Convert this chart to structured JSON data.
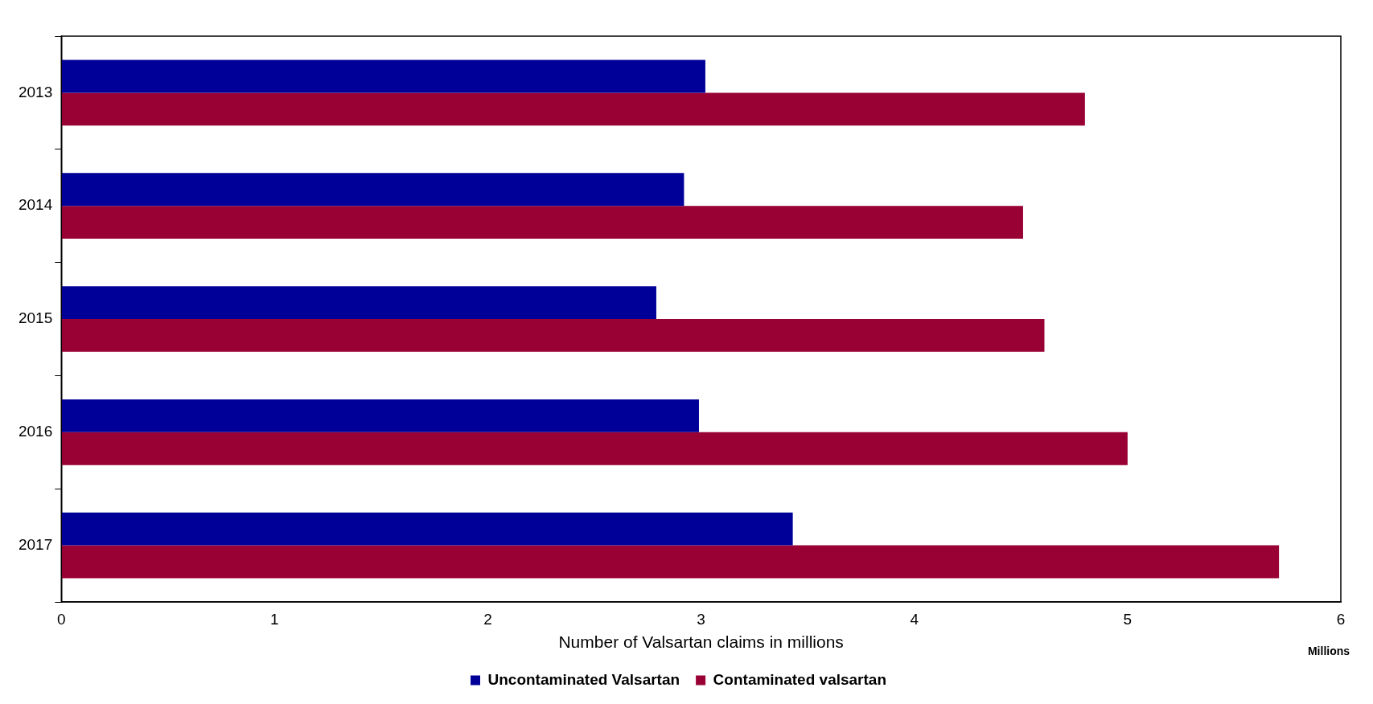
{
  "chart_data": {
    "type": "bar",
    "orientation": "horizontal",
    "xlabel": "Number of Valsartan claims in millions",
    "categories": [
      "2013",
      "2014",
      "2015",
      "2016",
      "2017"
    ],
    "series": [
      {
        "name": "Uncontaminated Valsartan",
        "color": "#000099",
        "values": [
          3.02,
          2.92,
          2.79,
          2.99,
          3.43
        ]
      },
      {
        "name": "Contaminated valsartan",
        "color": "#990033",
        "values": [
          4.8,
          4.51,
          4.61,
          5.0,
          5.71
        ]
      }
    ],
    "xlim": [
      0,
      6
    ],
    "xticks": [
      0,
      1,
      2,
      3,
      4,
      5,
      6
    ],
    "grid": false,
    "legend": "bottom",
    "annotations": [
      "Millions"
    ]
  }
}
